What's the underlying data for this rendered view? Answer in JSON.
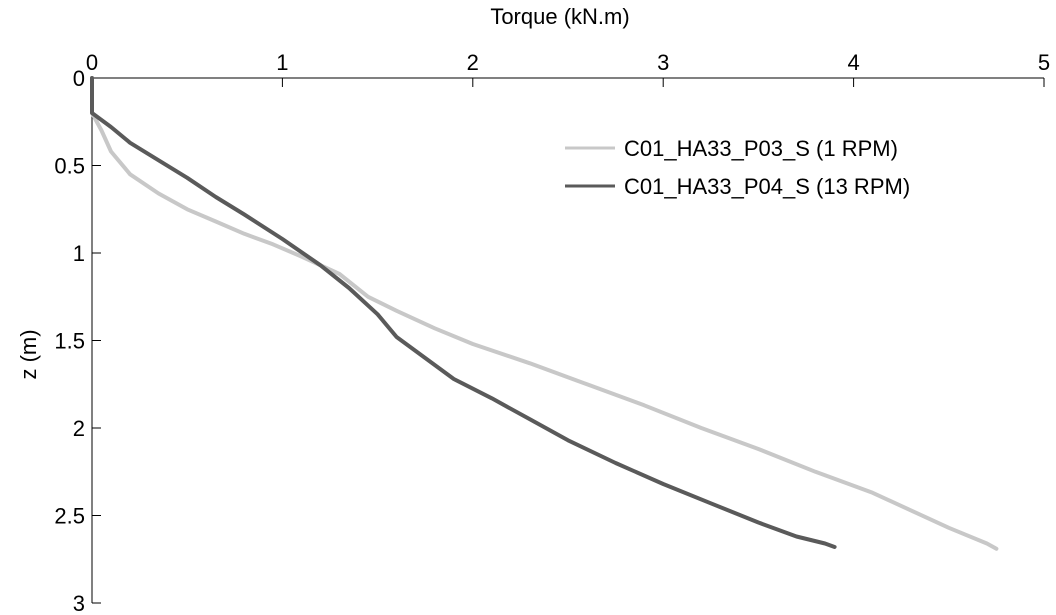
{
  "chart_data": {
    "type": "line",
    "xlabel": "Torque (kN.m)",
    "ylabel": "z (m)",
    "xlim": [
      0,
      5
    ],
    "ylim": [
      0,
      3
    ],
    "x_axis_position": "top",
    "y_axis_direction": "inverted",
    "grid": false,
    "legend_position": "top-right",
    "xticks": [
      "0",
      "1",
      "2",
      "3",
      "4",
      "5"
    ],
    "yticks": [
      "0",
      "0.5",
      "1",
      "1.5",
      "2",
      "2.5",
      "3"
    ],
    "series": [
      {
        "name": "C01_HA33_P03_S (1 RPM)",
        "color": "#c8c8c8",
        "points": [
          [
            0.0,
            0.0
          ],
          [
            0.0,
            0.2
          ],
          [
            0.05,
            0.3
          ],
          [
            0.1,
            0.42
          ],
          [
            0.2,
            0.55
          ],
          [
            0.35,
            0.66
          ],
          [
            0.5,
            0.75
          ],
          [
            0.65,
            0.82
          ],
          [
            0.8,
            0.89
          ],
          [
            0.95,
            0.95
          ],
          [
            1.1,
            1.02
          ],
          [
            1.3,
            1.12
          ],
          [
            1.45,
            1.25
          ],
          [
            1.6,
            1.33
          ],
          [
            1.8,
            1.43
          ],
          [
            2.0,
            1.52
          ],
          [
            2.3,
            1.63
          ],
          [
            2.6,
            1.75
          ],
          [
            2.9,
            1.87
          ],
          [
            3.2,
            2.0
          ],
          [
            3.5,
            2.12
          ],
          [
            3.8,
            2.25
          ],
          [
            4.1,
            2.37
          ],
          [
            4.3,
            2.47
          ],
          [
            4.5,
            2.57
          ],
          [
            4.7,
            2.66
          ],
          [
            4.75,
            2.69
          ]
        ]
      },
      {
        "name": "C01_HA33_P04_S (13 RPM)",
        "color": "#5a5a5a",
        "points": [
          [
            0.0,
            0.0
          ],
          [
            0.0,
            0.2
          ],
          [
            0.1,
            0.28
          ],
          [
            0.2,
            0.37
          ],
          [
            0.35,
            0.47
          ],
          [
            0.5,
            0.57
          ],
          [
            0.65,
            0.68
          ],
          [
            0.8,
            0.78
          ],
          [
            1.0,
            0.92
          ],
          [
            1.2,
            1.07
          ],
          [
            1.35,
            1.2
          ],
          [
            1.5,
            1.35
          ],
          [
            1.6,
            1.48
          ],
          [
            1.75,
            1.6
          ],
          [
            1.9,
            1.72
          ],
          [
            2.1,
            1.83
          ],
          [
            2.3,
            1.95
          ],
          [
            2.5,
            2.07
          ],
          [
            2.75,
            2.2
          ],
          [
            3.0,
            2.32
          ],
          [
            3.25,
            2.43
          ],
          [
            3.5,
            2.54
          ],
          [
            3.7,
            2.62
          ],
          [
            3.85,
            2.66
          ],
          [
            3.9,
            2.68
          ]
        ]
      }
    ]
  }
}
